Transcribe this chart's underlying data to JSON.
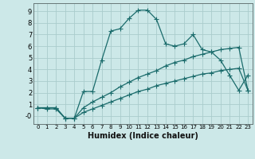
{
  "xlabel": "Humidex (Indice chaleur)",
  "background_color": "#cce8e8",
  "grid_color": "#aacccc",
  "line_color": "#1a6b6b",
  "xlim": [
    -0.5,
    23.5
  ],
  "ylim": [
    -0.7,
    9.7
  ],
  "xticks": [
    0,
    1,
    2,
    3,
    4,
    5,
    6,
    7,
    8,
    9,
    10,
    11,
    12,
    13,
    14,
    15,
    16,
    17,
    18,
    19,
    20,
    21,
    22,
    23
  ],
  "yticks": [
    0,
    1,
    2,
    3,
    4,
    5,
    6,
    7,
    8,
    9
  ],
  "ytick_labels": [
    "-0",
    "1",
    "2",
    "3",
    "4",
    "5",
    "6",
    "7",
    "8",
    "9"
  ],
  "line1_x": [
    0,
    1,
    2,
    3,
    4,
    5,
    6,
    7,
    8,
    9,
    10,
    11,
    12,
    13,
    14,
    15,
    16,
    17,
    18,
    19,
    20,
    21,
    22,
    23
  ],
  "line1_y": [
    0.7,
    0.6,
    0.6,
    -0.2,
    -0.2,
    2.1,
    2.1,
    4.8,
    7.3,
    7.5,
    8.4,
    9.1,
    9.1,
    8.3,
    6.2,
    6.0,
    6.2,
    7.0,
    5.7,
    5.5,
    4.8,
    3.5,
    2.2,
    3.5
  ],
  "line2_x": [
    0,
    1,
    2,
    3,
    4,
    5,
    6,
    7,
    8,
    9,
    10,
    11,
    12,
    13,
    14,
    15,
    16,
    17,
    18,
    19,
    20,
    21,
    22,
    23
  ],
  "line2_y": [
    0.7,
    0.7,
    0.7,
    -0.2,
    -0.2,
    0.7,
    1.2,
    1.6,
    2.0,
    2.5,
    2.9,
    3.3,
    3.6,
    3.9,
    4.3,
    4.6,
    4.8,
    5.1,
    5.3,
    5.5,
    5.7,
    5.8,
    5.9,
    2.2
  ],
  "line3_x": [
    0,
    1,
    2,
    3,
    4,
    5,
    6,
    7,
    8,
    9,
    10,
    11,
    12,
    13,
    14,
    15,
    16,
    17,
    18,
    19,
    20,
    21,
    22,
    23
  ],
  "line3_y": [
    0.7,
    0.7,
    0.7,
    -0.2,
    -0.2,
    0.3,
    0.6,
    0.9,
    1.2,
    1.5,
    1.8,
    2.1,
    2.3,
    2.6,
    2.8,
    3.0,
    3.2,
    3.4,
    3.6,
    3.7,
    3.9,
    4.0,
    4.1,
    2.2
  ]
}
